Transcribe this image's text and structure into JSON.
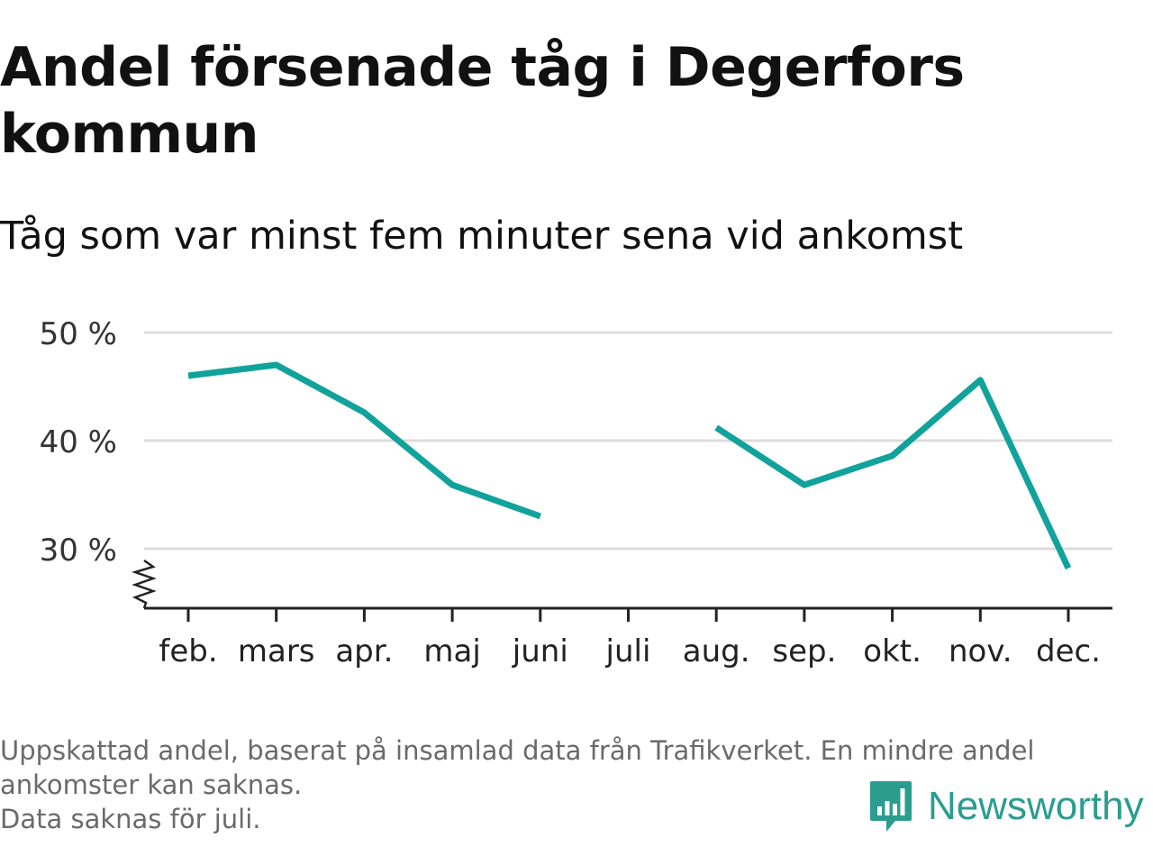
{
  "header": {
    "title": "Andel försenade tåg i Degerfors kommun",
    "subtitle": "Tåg som var minst fem minuter sena vid ankomst"
  },
  "footnote": {
    "lines": [
      "Uppskattad andel, baserat på insamlad data från Trafikverket. En mindre andel",
      "ankomster kan saknas.",
      "Data saknas för juli."
    ]
  },
  "logo": {
    "text": "Newsworthy",
    "icon": "bar-chart-badge-icon",
    "color": "#2a9d8f"
  },
  "chart_data": {
    "type": "line",
    "categories": [
      "feb.",
      "mars",
      "apr.",
      "maj",
      "juni",
      "juli",
      "aug.",
      "sep.",
      "okt.",
      "nov.",
      "dec."
    ],
    "series": [
      {
        "values": [
          46.0,
          47.0,
          42.6,
          35.9,
          33.0,
          null,
          41.2,
          35.9,
          38.6,
          45.6,
          28.2
        ],
        "color": "#11a39b"
      }
    ],
    "y_ticks": [
      30,
      40,
      50
    ],
    "y_tick_labels": [
      "30 %",
      "40 %",
      "50 %"
    ],
    "ylim": [
      24.5,
      50
    ],
    "y_axis_break": true,
    "grid": true,
    "legend": "none",
    "xlabel": "",
    "ylabel": ""
  }
}
